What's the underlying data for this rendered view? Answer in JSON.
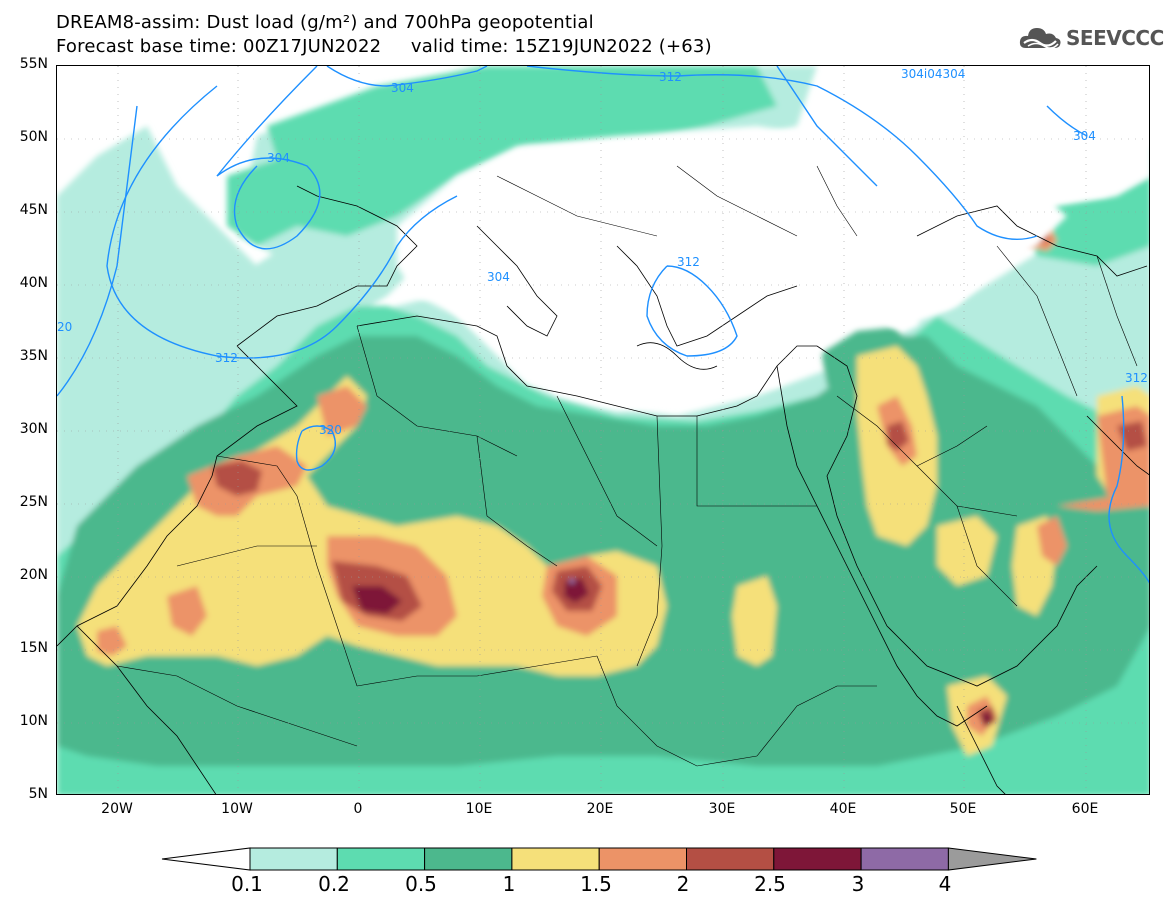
{
  "title": {
    "line1": "DREAM8-assim: Dust load (g/m²) and 700hPa geopotential",
    "line2": "Forecast base time: 00Z17JUN2022     valid time: 15Z19JUN2022 (+63)"
  },
  "logo": {
    "text": "SEEVCCC",
    "icon": "cloud-icon"
  },
  "axes": {
    "lat_labels": [
      "55N",
      "50N",
      "45N",
      "40N",
      "35N",
      "30N",
      "25N",
      "20N",
      "15N",
      "10N",
      "5N"
    ],
    "lon_labels": [
      "20W",
      "10W",
      "0",
      "10E",
      "20E",
      "30E",
      "40E",
      "50E",
      "60E"
    ]
  },
  "contours": {
    "color": "#1e90ff",
    "labels": [
      "304",
      "304",
      "312",
      "304i04304",
      "304",
      "304",
      "312",
      "320",
      "312",
      "312",
      "20"
    ]
  },
  "colorbar": {
    "ticks": [
      "0.1",
      "0.2",
      "0.5",
      "1",
      "1.5",
      "2",
      "2.5",
      "3",
      "4"
    ],
    "colors": [
      "#ffffff",
      "#b5ecdf",
      "#5ddcb0",
      "#4cb88d",
      "#f5e07a",
      "#ec9367",
      "#b44f44",
      "#7e1638",
      "#8e6aa6",
      "#9b9b9b"
    ]
  }
}
